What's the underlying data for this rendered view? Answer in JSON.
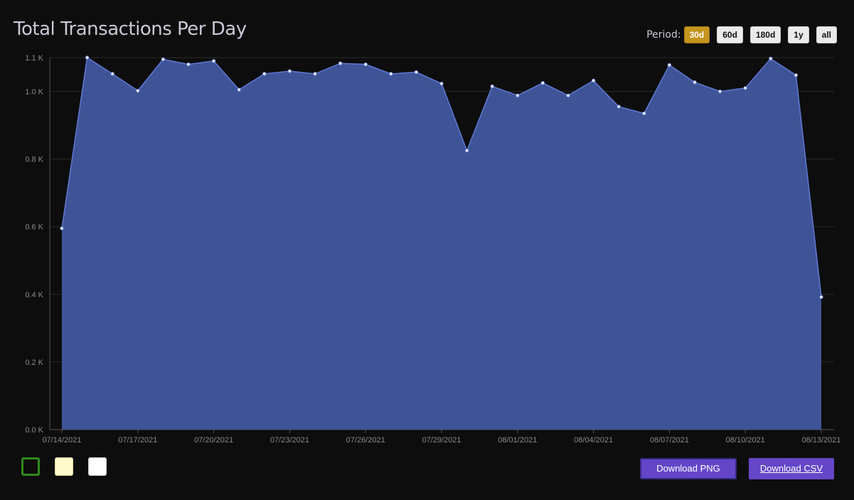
{
  "header": {
    "title": "Total Transactions Per Day",
    "period_label": "Period:",
    "periods": [
      "30d",
      "60d",
      "180d",
      "1y",
      "all"
    ],
    "active_period": "30d"
  },
  "colors": {
    "area_fill": "#3f5497",
    "line": "#5f7ad6",
    "active_period": "#c4951f",
    "download_button": "#6447c8",
    "background": "#0d0d0d"
  },
  "swatches": [
    {
      "name": "dark-theme-swatch",
      "fill": "#0d0d0d",
      "border": "#2f8a1a",
      "selected": true
    },
    {
      "name": "cream-theme-swatch",
      "fill": "#fff9cc",
      "border": "#d9d0a0",
      "selected": false
    },
    {
      "name": "white-theme-swatch",
      "fill": "#ffffff",
      "border": "#cccccc",
      "selected": false
    }
  ],
  "buttons": {
    "download_png": "Download PNG",
    "download_csv": "Download CSV"
  },
  "chart_data": {
    "type": "area",
    "title": "Total Transactions Per Day",
    "xlabel": "",
    "ylabel": "",
    "x": [
      "07/14/2021",
      "07/15/2021",
      "07/16/2021",
      "07/17/2021",
      "07/18/2021",
      "07/19/2021",
      "07/20/2021",
      "07/21/2021",
      "07/22/2021",
      "07/23/2021",
      "07/24/2021",
      "07/25/2021",
      "07/26/2021",
      "07/27/2021",
      "07/28/2021",
      "07/29/2021",
      "07/30/2021",
      "07/31/2021",
      "08/01/2021",
      "08/02/2021",
      "08/03/2021",
      "08/04/2021",
      "08/05/2021",
      "08/06/2021",
      "08/07/2021",
      "08/08/2021",
      "08/09/2021",
      "08/10/2021",
      "08/11/2021",
      "08/12/2021",
      "08/13/2021"
    ],
    "values": [
      595,
      1100,
      1052,
      1002,
      1095,
      1080,
      1090,
      1005,
      1052,
      1060,
      1052,
      1083,
      1080,
      1052,
      1057,
      1023,
      825,
      1015,
      988,
      1025,
      988,
      1032,
      955,
      935,
      1078,
      1027,
      1000,
      1010,
      1097,
      1048,
      392
    ],
    "xticks": [
      "07/14/2021",
      "07/17/2021",
      "07/20/2021",
      "07/23/2021",
      "07/26/2021",
      "07/29/2021",
      "08/01/2021",
      "08/04/2021",
      "08/07/2021",
      "08/10/2021",
      "08/13/2021"
    ],
    "yticks": [
      0,
      200,
      400,
      600,
      800,
      1000,
      1100
    ],
    "ytick_labels": [
      "0.0 K",
      "0.2 K",
      "0.4 K",
      "0.6 K",
      "0.8 K",
      "1.0 K",
      "1.1 K"
    ],
    "ylim": [
      0,
      1100
    ],
    "grid": true,
    "legend": false
  }
}
